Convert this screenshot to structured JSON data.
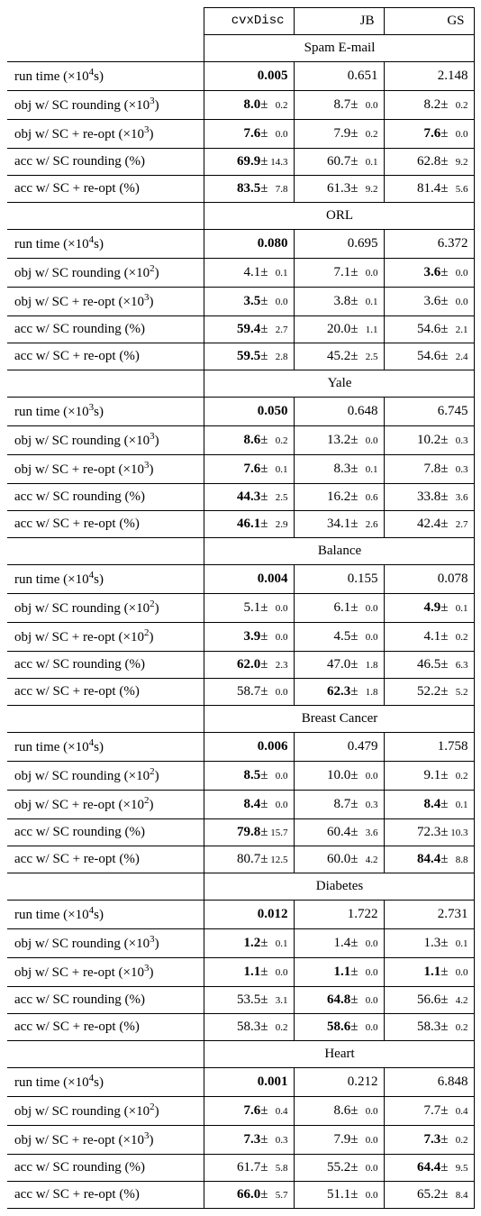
{
  "columns": [
    {
      "label": "cvxDisc",
      "mono": true
    },
    {
      "label": "JB",
      "mono": false
    },
    {
      "label": "GS",
      "mono": false
    }
  ],
  "row_templates": {
    "runtime": {
      "pre": "run time (×10",
      "exp": "4",
      "post": "s)"
    },
    "runtime3": {
      "pre": "run time (×10",
      "exp": "3",
      "post": "s)"
    },
    "obj_r2": {
      "pre": "obj w/ SC rounding (×10",
      "exp": "2",
      "post": ")"
    },
    "obj_r3": {
      "pre": "obj w/ SC rounding (×10",
      "exp": "3",
      "post": ")"
    },
    "obj_o2": {
      "pre": "obj w/ SC + re-opt (×10",
      "exp": "2",
      "post": ")"
    },
    "obj_o3": {
      "pre": "obj w/ SC + re-opt (×10",
      "exp": "3",
      "post": ")"
    },
    "acc_r": {
      "pre": "acc w/ SC rounding (%)",
      "exp": "",
      "post": ""
    },
    "acc_o": {
      "pre": "acc w/ SC + re-opt (%)",
      "exp": "",
      "post": ""
    }
  },
  "sections": [
    {
      "title": "Spam E-mail",
      "rows": [
        {
          "tpl": "runtime",
          "cells": [
            {
              "v": "0.005",
              "b": 1
            },
            {
              "v": "0.651"
            },
            {
              "v": "2.148"
            }
          ]
        },
        {
          "tpl": "obj_r3",
          "cells": [
            {
              "v": "8.0",
              "pm": "0.2",
              "b": 1
            },
            {
              "v": "8.7",
              "pm": "0.0"
            },
            {
              "v": "8.2",
              "pm": "0.2"
            }
          ]
        },
        {
          "tpl": "obj_o3",
          "cells": [
            {
              "v": "7.6",
              "pm": "0.0",
              "b": 1
            },
            {
              "v": "7.9",
              "pm": "0.2"
            },
            {
              "v": "7.6",
              "pm": "0.0",
              "b": 1
            }
          ]
        },
        {
          "tpl": "acc_r",
          "cells": [
            {
              "v": "69.9",
              "pm": "14.3",
              "b": 1
            },
            {
              "v": "60.7",
              "pm": "0.1"
            },
            {
              "v": "62.8",
              "pm": "9.2"
            }
          ]
        },
        {
          "tpl": "acc_o",
          "cells": [
            {
              "v": "83.5",
              "pm": "7.8",
              "b": 1
            },
            {
              "v": "61.3",
              "pm": "9.2"
            },
            {
              "v": "81.4",
              "pm": "5.6"
            }
          ]
        }
      ]
    },
    {
      "title": "ORL",
      "rows": [
        {
          "tpl": "runtime",
          "cells": [
            {
              "v": "0.080",
              "b": 1
            },
            {
              "v": "0.695"
            },
            {
              "v": "6.372"
            }
          ]
        },
        {
          "tpl": "obj_r2",
          "cells": [
            {
              "v": "4.1",
              "pm": "0.1"
            },
            {
              "v": "7.1",
              "pm": "0.0"
            },
            {
              "v": "3.6",
              "pm": "0.0",
              "b": 1
            }
          ]
        },
        {
          "tpl": "obj_o3",
          "cells": [
            {
              "v": "3.5",
              "pm": "0.0",
              "b": 1
            },
            {
              "v": "3.8",
              "pm": "0.1"
            },
            {
              "v": "3.6",
              "pm": "0.0"
            }
          ]
        },
        {
          "tpl": "acc_r",
          "cells": [
            {
              "v": "59.4",
              "pm": "2.7",
              "b": 1
            },
            {
              "v": "20.0",
              "pm": "1.1"
            },
            {
              "v": "54.6",
              "pm": "2.1"
            }
          ]
        },
        {
          "tpl": "acc_o",
          "cells": [
            {
              "v": "59.5",
              "pm": "2.8",
              "b": 1
            },
            {
              "v": "45.2",
              "pm": "2.5"
            },
            {
              "v": "54.6",
              "pm": "2.4"
            }
          ]
        }
      ]
    },
    {
      "title": "Yale",
      "rows": [
        {
          "tpl": "runtime3",
          "cells": [
            {
              "v": "0.050",
              "b": 1
            },
            {
              "v": "0.648"
            },
            {
              "v": "6.745"
            }
          ]
        },
        {
          "tpl": "obj_r3",
          "cells": [
            {
              "v": "8.6",
              "pm": "0.2",
              "b": 1
            },
            {
              "v": "13.2",
              "pm": "0.0"
            },
            {
              "v": "10.2",
              "pm": "0.3"
            }
          ]
        },
        {
          "tpl": "obj_o3",
          "cells": [
            {
              "v": "7.6",
              "pm": "0.1",
              "b": 1
            },
            {
              "v": "8.3",
              "pm": "0.1"
            },
            {
              "v": "7.8",
              "pm": "0.3"
            }
          ]
        },
        {
          "tpl": "acc_r",
          "cells": [
            {
              "v": "44.3",
              "pm": "2.5",
              "b": 1
            },
            {
              "v": "16.2",
              "pm": "0.6"
            },
            {
              "v": "33.8",
              "pm": "3.6"
            }
          ]
        },
        {
          "tpl": "acc_o",
          "cells": [
            {
              "v": "46.1",
              "pm": "2.9",
              "b": 1
            },
            {
              "v": "34.1",
              "pm": "2.6"
            },
            {
              "v": "42.4",
              "pm": "2.7"
            }
          ]
        }
      ]
    },
    {
      "title": "Balance",
      "rows": [
        {
          "tpl": "runtime",
          "cells": [
            {
              "v": "0.004",
              "b": 1
            },
            {
              "v": "0.155"
            },
            {
              "v": "0.078"
            }
          ]
        },
        {
          "tpl": "obj_r2",
          "cells": [
            {
              "v": "5.1",
              "pm": "0.0"
            },
            {
              "v": "6.1",
              "pm": "0.0"
            },
            {
              "v": "4.9",
              "pm": "0.1",
              "b": 1
            }
          ]
        },
        {
          "tpl": "obj_o2",
          "cells": [
            {
              "v": "3.9",
              "pm": "0.0",
              "b": 1
            },
            {
              "v": "4.5",
              "pm": "0.0"
            },
            {
              "v": "4.1",
              "pm": "0.2"
            }
          ]
        },
        {
          "tpl": "acc_r",
          "cells": [
            {
              "v": "62.0",
              "pm": "2.3",
              "b": 1
            },
            {
              "v": "47.0",
              "pm": "1.8"
            },
            {
              "v": "46.5",
              "pm": "6.3"
            }
          ]
        },
        {
          "tpl": "acc_o",
          "cells": [
            {
              "v": "58.7",
              "pm": "0.0"
            },
            {
              "v": "62.3",
              "pm": "1.8",
              "b": 1
            },
            {
              "v": "52.2",
              "pm": "5.2"
            }
          ]
        }
      ]
    },
    {
      "title": "Breast Cancer",
      "rows": [
        {
          "tpl": "runtime",
          "cells": [
            {
              "v": "0.006",
              "b": 1
            },
            {
              "v": "0.479"
            },
            {
              "v": "1.758"
            }
          ]
        },
        {
          "tpl": "obj_r2",
          "cells": [
            {
              "v": "8.5",
              "pm": "0.0",
              "b": 1
            },
            {
              "v": "10.0",
              "pm": "0.0"
            },
            {
              "v": "9.1",
              "pm": "0.2"
            }
          ]
        },
        {
          "tpl": "obj_o2",
          "cells": [
            {
              "v": "8.4",
              "pm": "0.0",
              "b": 1
            },
            {
              "v": "8.7",
              "pm": "0.3"
            },
            {
              "v": "8.4",
              "pm": "0.1",
              "b": 1
            }
          ]
        },
        {
          "tpl": "acc_r",
          "cells": [
            {
              "v": "79.8",
              "pm": "15.7",
              "b": 1
            },
            {
              "v": "60.4",
              "pm": "3.6"
            },
            {
              "v": "72.3",
              "pm": "10.3"
            }
          ]
        },
        {
          "tpl": "acc_o",
          "cells": [
            {
              "v": "80.7",
              "pm": "12.5"
            },
            {
              "v": "60.0",
              "pm": "4.2"
            },
            {
              "v": "84.4",
              "pm": "8.8",
              "b": 1
            }
          ]
        }
      ]
    },
    {
      "title": "Diabetes",
      "rows": [
        {
          "tpl": "runtime",
          "cells": [
            {
              "v": "0.012",
              "b": 1
            },
            {
              "v": "1.722"
            },
            {
              "v": "2.731"
            }
          ]
        },
        {
          "tpl": "obj_r3",
          "cells": [
            {
              "v": "1.2",
              "pm": "0.1",
              "b": 1
            },
            {
              "v": "1.4",
              "pm": "0.0"
            },
            {
              "v": "1.3",
              "pm": "0.1"
            }
          ]
        },
        {
          "tpl": "obj_o3",
          "cells": [
            {
              "v": "1.1",
              "pm": "0.0",
              "b": 1
            },
            {
              "v": "1.1",
              "pm": "0.0",
              "b": 1
            },
            {
              "v": "1.1",
              "pm": "0.0",
              "b": 1
            }
          ]
        },
        {
          "tpl": "acc_r",
          "cells": [
            {
              "v": "53.5",
              "pm": "3.1"
            },
            {
              "v": "64.8",
              "pm": "0.0",
              "b": 1
            },
            {
              "v": "56.6",
              "pm": "4.2"
            }
          ]
        },
        {
          "tpl": "acc_o",
          "cells": [
            {
              "v": "58.3",
              "pm": "0.2"
            },
            {
              "v": "58.6",
              "pm": "0.0",
              "b": 1
            },
            {
              "v": "58.3",
              "pm": "0.2"
            }
          ]
        }
      ]
    },
    {
      "title": "Heart",
      "rows": [
        {
          "tpl": "runtime",
          "cells": [
            {
              "v": "0.001",
              "b": 1
            },
            {
              "v": "0.212"
            },
            {
              "v": "6.848"
            }
          ]
        },
        {
          "tpl": "obj_r2",
          "cells": [
            {
              "v": "7.6",
              "pm": "0.4",
              "b": 1
            },
            {
              "v": "8.6",
              "pm": "0.0"
            },
            {
              "v": "7.7",
              "pm": "0.4"
            }
          ]
        },
        {
          "tpl": "obj_o3",
          "cells": [
            {
              "v": "7.3",
              "pm": "0.3",
              "b": 1
            },
            {
              "v": "7.9",
              "pm": "0.0"
            },
            {
              "v": "7.3",
              "pm": "0.2",
              "b": 1
            }
          ]
        },
        {
          "tpl": "acc_r",
          "cells": [
            {
              "v": "61.7",
              "pm": "5.8"
            },
            {
              "v": "55.2",
              "pm": "0.0"
            },
            {
              "v": "64.4",
              "pm": "9.5",
              "b": 1
            }
          ]
        },
        {
          "tpl": "acc_o",
          "cells": [
            {
              "v": "66.0",
              "pm": "5.7",
              "b": 1
            },
            {
              "v": "51.1",
              "pm": "0.0"
            },
            {
              "v": "65.2",
              "pm": "8.4"
            }
          ]
        }
      ]
    }
  ]
}
